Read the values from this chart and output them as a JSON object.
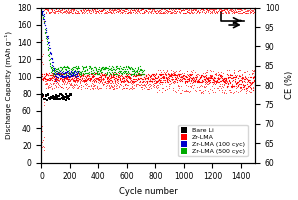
{
  "xlabel": "Cycle number",
  "ylabel_left": "Discharge Capacity (mAh g⁻¹)",
  "ylabel_right": "CE (%)",
  "xlim": [
    0,
    1500
  ],
  "ylim_left": [
    0,
    180
  ],
  "ylim_right": [
    60,
    100
  ],
  "yticks_left": [
    0,
    20,
    40,
    60,
    80,
    100,
    120,
    140,
    160,
    180
  ],
  "yticks_right": [
    60,
    65,
    70,
    75,
    80,
    85,
    90,
    95,
    100
  ],
  "xticks": [
    0,
    200,
    400,
    600,
    800,
    1000,
    1200,
    1400
  ],
  "legend_labels": [
    "Bare Li",
    "Zr-LMA",
    "Zr-LMA (100 cyc)",
    "Zr-LMA (500 cyc)"
  ],
  "colors": {
    "bare_li": "#000000",
    "zr_lma": "#ff0000",
    "zr_lma_100": "#0000cc",
    "zr_lma_500": "#00aa00"
  },
  "background_color": "#ffffff"
}
